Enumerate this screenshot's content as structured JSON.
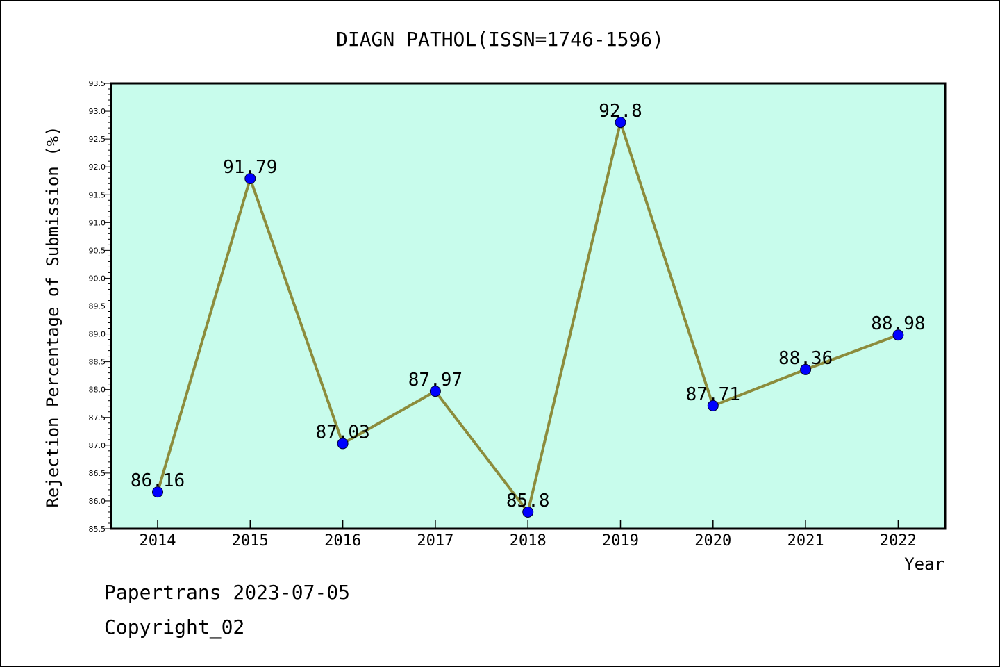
{
  "chart_data": {
    "type": "line",
    "title": "DIAGN PATHOL(ISSN=1746-1596)",
    "xlabel": "Year",
    "ylabel": "Rejection Percentage of Submission (%)",
    "categories": [
      "2014",
      "2015",
      "2016",
      "2017",
      "2018",
      "2019",
      "2020",
      "2021",
      "2022"
    ],
    "series": [
      {
        "values": [
          86.16,
          91.79,
          87.03,
          87.97,
          85.8,
          92.8,
          87.71,
          88.36,
          88.98
        ],
        "labels": [
          "86.16",
          "91.79",
          "87.03",
          "87.97",
          "85.8",
          "92.8",
          "87.71",
          "88.36",
          "88.98"
        ]
      }
    ],
    "ylim": [
      85.5,
      93.5
    ],
    "yticks": [
      "85.5",
      "86.0",
      "86.5",
      "87.0",
      "87.5",
      "88.0",
      "88.5",
      "89.0",
      "89.5",
      "90.0",
      "90.5",
      "91.0",
      "91.5",
      "92.0",
      "92.5",
      "93.0",
      "93.5"
    ],
    "y_minor_step": 0.1,
    "grid": false,
    "colors": {
      "plot_background": "#c8fcec",
      "line": "#8c8c3c",
      "marker": "#0000ff",
      "axes": "#000000"
    }
  },
  "footer": {
    "line1": "Papertrans 2023-07-05",
    "line2": "Copyright_02"
  }
}
